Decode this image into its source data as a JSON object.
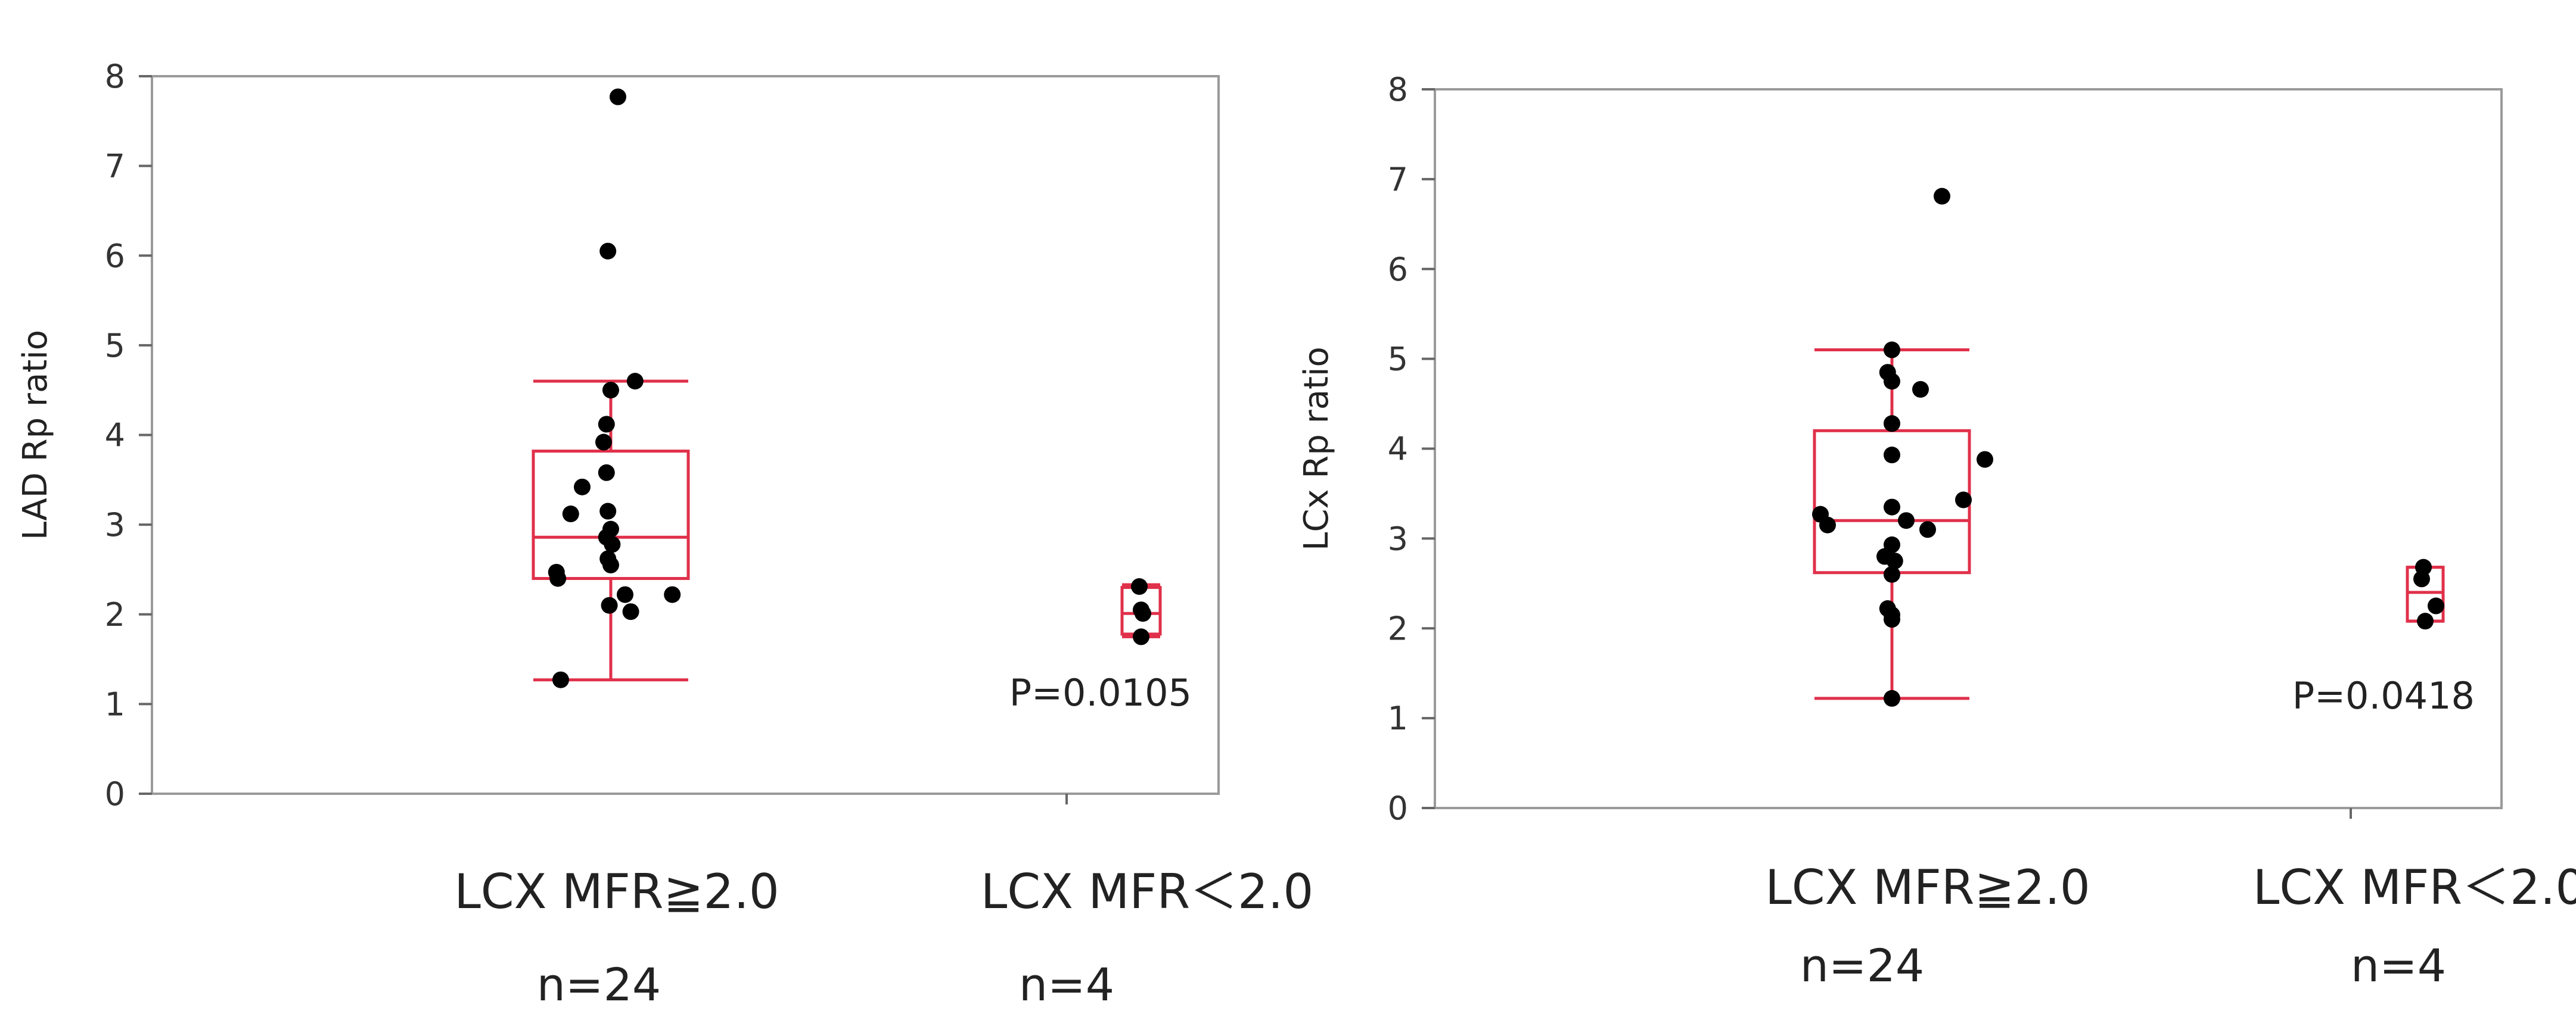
{
  "chart_data": [
    {
      "type": "box",
      "ylabel": "LAD Rp ratio",
      "ylim": [
        0,
        8
      ],
      "yticks": [
        0,
        1,
        2,
        3,
        4,
        5,
        6,
        7,
        8
      ],
      "box_color": "#e0304a",
      "point_color": "#000000",
      "pvalue_label": "P=0.0105",
      "groups": [
        {
          "label": "LCX MFR≧2.0",
          "n_label": "n=24",
          "stats": {
            "whisker_low": 1.27,
            "q1": 2.4,
            "median": 2.86,
            "q3": 3.82,
            "whisker_high": 4.6
          },
          "points": [
            {
              "offset": 0.05,
              "y": 7.77
            },
            {
              "offset": -0.02,
              "y": 6.05
            },
            {
              "offset": 0.17,
              "y": 4.6
            },
            {
              "offset": 0.0,
              "y": 4.5
            },
            {
              "offset": -0.03,
              "y": 4.12
            },
            {
              "offset": -0.05,
              "y": 3.92
            },
            {
              "offset": -0.03,
              "y": 3.58
            },
            {
              "offset": -0.2,
              "y": 3.42
            },
            {
              "offset": -0.28,
              "y": 3.12
            },
            {
              "offset": -0.02,
              "y": 3.15
            },
            {
              "offset": 0.0,
              "y": 2.95
            },
            {
              "offset": -0.03,
              "y": 2.86
            },
            {
              "offset": 0.01,
              "y": 2.78
            },
            {
              "offset": -0.02,
              "y": 2.62
            },
            {
              "offset": 0.0,
              "y": 2.55
            },
            {
              "offset": -0.38,
              "y": 2.47
            },
            {
              "offset": -0.37,
              "y": 2.4
            },
            {
              "offset": 0.1,
              "y": 2.22
            },
            {
              "offset": 0.43,
              "y": 2.22
            },
            {
              "offset": -0.01,
              "y": 2.1
            },
            {
              "offset": 0.14,
              "y": 2.03
            },
            {
              "offset": -0.35,
              "y": 1.27
            }
          ]
        },
        {
          "label": "LCX MFR＜2.0",
          "n_label": "n=4",
          "stats": {
            "whisker_low": 1.75,
            "q1": 1.78,
            "median": 2.01,
            "q3": 2.3,
            "whisker_high": 2.33
          },
          "points": [
            {
              "offset": -0.05,
              "y": 2.31
            },
            {
              "offset": 0.0,
              "y": 2.05
            },
            {
              "offset": 0.05,
              "y": 2.01
            },
            {
              "offset": 0.0,
              "y": 1.75
            }
          ]
        }
      ]
    },
    {
      "type": "box",
      "ylabel": "LCx Rp ratio",
      "ylim": [
        0,
        8
      ],
      "yticks": [
        0,
        1,
        2,
        3,
        4,
        5,
        6,
        7,
        8
      ],
      "box_color": "#e0304a",
      "point_color": "#000000",
      "pvalue_label": "P=0.0418",
      "groups": [
        {
          "label": "LCX MFR≧2.0",
          "n_label": "n=24",
          "stats": {
            "whisker_low": 1.22,
            "q1": 2.62,
            "median": 3.2,
            "q3": 4.2,
            "whisker_high": 5.1
          },
          "points": [
            {
              "offset": 0.35,
              "y": 6.81
            },
            {
              "offset": 0.0,
              "y": 5.1
            },
            {
              "offset": -0.03,
              "y": 4.85
            },
            {
              "offset": 0.0,
              "y": 4.75
            },
            {
              "offset": 0.2,
              "y": 4.66
            },
            {
              "offset": 0.0,
              "y": 4.28
            },
            {
              "offset": 0.0,
              "y": 3.93
            },
            {
              "offset": 0.65,
              "y": 3.88
            },
            {
              "offset": 0.5,
              "y": 3.43
            },
            {
              "offset": 0.0,
              "y": 3.35
            },
            {
              "offset": -0.5,
              "y": 3.27
            },
            {
              "offset": -0.45,
              "y": 3.15
            },
            {
              "offset": 0.1,
              "y": 3.2
            },
            {
              "offset": 0.25,
              "y": 3.1
            },
            {
              "offset": 0.0,
              "y": 2.93
            },
            {
              "offset": -0.05,
              "y": 2.8
            },
            {
              "offset": 0.02,
              "y": 2.75
            },
            {
              "offset": 0.0,
              "y": 2.6
            },
            {
              "offset": -0.03,
              "y": 2.22
            },
            {
              "offset": 0.0,
              "y": 2.15
            },
            {
              "offset": 0.0,
              "y": 2.1
            },
            {
              "offset": 0.0,
              "y": 1.22
            }
          ]
        },
        {
          "label": "LCX MFR＜2.0",
          "n_label": "n=4",
          "stats": {
            "whisker_low": 2.08,
            "q1": 2.08,
            "median": 2.4,
            "q3": 2.68,
            "whisker_high": 2.68
          },
          "points": [
            {
              "offset": -0.05,
              "y": 2.68
            },
            {
              "offset": -0.1,
              "y": 2.55
            },
            {
              "offset": 0.3,
              "y": 2.25
            },
            {
              "offset": 0.0,
              "y": 2.08
            }
          ]
        }
      ]
    }
  ]
}
